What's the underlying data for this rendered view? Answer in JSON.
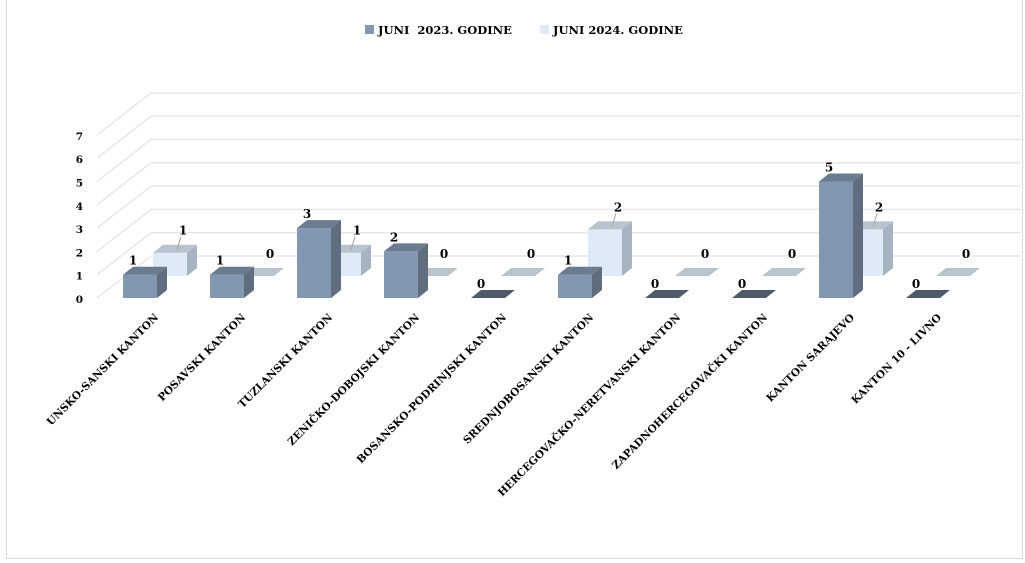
{
  "chart_data": {
    "type": "bar",
    "title": "",
    "xlabel": "",
    "ylabel": "",
    "ylim": [
      0,
      7
    ],
    "yticks": [
      "0",
      "1",
      "2",
      "3",
      "4",
      "5",
      "6",
      "7"
    ],
    "categories": [
      "UNSKO-SANSKI KANTON",
      "POSAVSKI KANTON",
      "TUZLANSKI KANTON",
      "ZENIČKO-DOBOJSKI KANTON",
      "BOSANSKO-PODRINJSKI KANTON",
      "SREDNJOBOSANSKI KANTON",
      "HERCEGOVAČKO-NERETVANSKI KANTON",
      "ZAPADNOHERCEGOVAČKI KANTON",
      "KANTON SARAJEVO",
      "KANTON 10 - LIVNO"
    ],
    "series": [
      {
        "name": "JUNI  2023. GODINE",
        "color": "#8497b0",
        "values": [
          1,
          1,
          3,
          2,
          0,
          1,
          0,
          0,
          5,
          0
        ]
      },
      {
        "name": "JUNI 2024. GODINE",
        "color": "#deebf7",
        "values": [
          1,
          0,
          1,
          0,
          0,
          2,
          0,
          0,
          2,
          0
        ]
      }
    ],
    "legend_position": "top",
    "grid": true,
    "style": "3d-clustered-column"
  }
}
